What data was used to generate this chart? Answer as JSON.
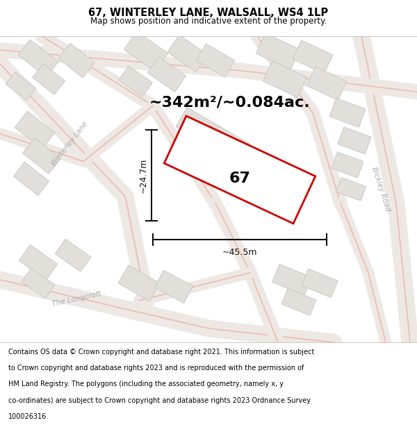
{
  "title_line1": "67, WINTERLEY LANE, WALSALL, WS4 1LP",
  "title_line2": "Map shows position and indicative extent of the property.",
  "area_text": "~342m²/~0.084ac.",
  "dim_width": "~45.5m",
  "dim_height": "~24.7m",
  "property_number": "67",
  "footer_lines": [
    "Contains OS data © Crown copyright and database right 2021. This information is subject",
    "to Crown copyright and database rights 2023 and is reproduced with the permission of",
    "HM Land Registry. The polygons (including the associated geometry, namely x, y",
    "co-ordinates) are subject to Crown copyright and database rights 2023 Ordnance Survey",
    "100026316."
  ],
  "map_bg": "#f8f6f4",
  "road_line_color": "#f0b8b0",
  "road_fill_color": "#ede8e4",
  "building_face": "#e2dfdb",
  "building_edge": "#c8c4be",
  "plot_edge": "#cc0000",
  "plot_face": "#ffffff",
  "dim_color": "#111111",
  "street_label_color": "#aaaaaa",
  "title_bg": "#ffffff",
  "footer_bg": "#ffffff",
  "sep_color": "#cccccc",
  "title_fs": 10.5,
  "subtitle_fs": 8.5,
  "area_fs": 16,
  "num_fs": 16,
  "dim_fs": 9,
  "street_fs": 7.5,
  "footer_fs": 7.0
}
